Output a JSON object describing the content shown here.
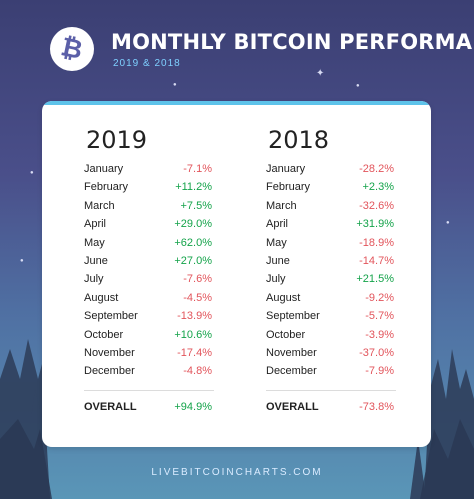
{
  "header": {
    "title": "MONTHLY BITCOIN PERFORMANCE",
    "subtitle": "2019 & 2018",
    "logo_icon": "bitcoin-icon"
  },
  "colors": {
    "positive": "#14a34a",
    "negative": "#e2545b",
    "accent": "#5ec3ea"
  },
  "columns": [
    {
      "year": "2019",
      "months": [
        {
          "month": "January",
          "value": "-7.1%"
        },
        {
          "month": "February",
          "value": "+11.2%"
        },
        {
          "month": "March",
          "value": "+7.5%"
        },
        {
          "month": "April",
          "value": "+29.0%"
        },
        {
          "month": "May",
          "value": "+62.0%"
        },
        {
          "month": "June",
          "value": "+27.0%"
        },
        {
          "month": "July",
          "value": "-7.6%"
        },
        {
          "month": "August",
          "value": "-4.5%"
        },
        {
          "month": "September",
          "value": "-13.9%"
        },
        {
          "month": "October",
          "value": "+10.6%"
        },
        {
          "month": "November",
          "value": "-17.4%"
        },
        {
          "month": "December",
          "value": "-4.8%"
        }
      ],
      "overall_label": "OVERALL",
      "overall_value": "+94.9%"
    },
    {
      "year": "2018",
      "months": [
        {
          "month": "January",
          "value": "-28.2%"
        },
        {
          "month": "February",
          "value": "+2.3%"
        },
        {
          "month": "March",
          "value": "-32.6%"
        },
        {
          "month": "April",
          "value": "+31.9%"
        },
        {
          "month": "May",
          "value": "-18.9%"
        },
        {
          "month": "June",
          "value": "-14.7%"
        },
        {
          "month": "July",
          "value": "+21.5%"
        },
        {
          "month": "August",
          "value": "-9.2%"
        },
        {
          "month": "September",
          "value": "-5.7%"
        },
        {
          "month": "October",
          "value": "-3.9%"
        },
        {
          "month": "November",
          "value": "-37.0%"
        },
        {
          "month": "December",
          "value": "-7.9%"
        }
      ],
      "overall_label": "OVERALL",
      "overall_value": "-73.8%"
    }
  ],
  "footer": {
    "site": "LIVEBITCOINCHARTS.COM"
  }
}
